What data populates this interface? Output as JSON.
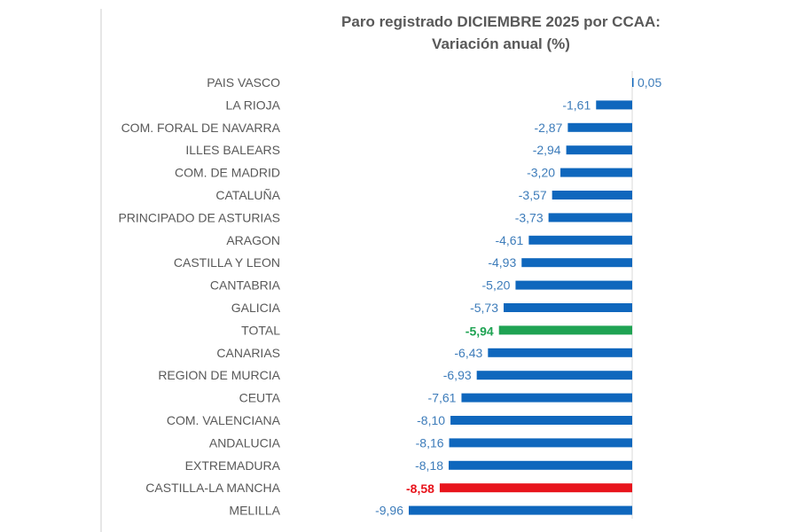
{
  "chart_data": {
    "type": "bar",
    "orientation": "horizontal",
    "title": "Paro registrado DICIEMBRE 2025 por CCAA:",
    "subtitle": "Variación anual (%)",
    "xlabel": "",
    "ylabel": "",
    "xlim": [
      -10,
      0.3
    ],
    "grid": false,
    "legend": "none",
    "categories": [
      "PAIS VASCO",
      "LA RIOJA",
      "COM. FORAL DE NAVARRA",
      "ILLES BALEARS",
      "COM. DE MADRID",
      "CATALUÑA",
      "PRINCIPADO DE ASTURIAS",
      "ARAGON",
      "CASTILLA Y LEON",
      "CANTABRIA",
      "GALICIA",
      "TOTAL",
      "CANARIAS",
      "REGION DE MURCIA",
      "CEUTA",
      "COM. VALENCIANA",
      "ANDALUCIA",
      "EXTREMADURA",
      "CASTILLA-LA MANCHA",
      "MELILLA"
    ],
    "values": [
      0.05,
      -1.61,
      -2.87,
      -2.94,
      -3.2,
      -3.57,
      -3.73,
      -4.61,
      -4.93,
      -5.2,
      -5.73,
      -5.94,
      -6.43,
      -6.93,
      -7.61,
      -8.1,
      -8.16,
      -8.18,
      -8.58,
      -9.96
    ],
    "labels": [
      "0,05",
      "-1,61",
      "-2,87",
      "-2,94",
      "-3,20",
      "-3,57",
      "-3,73",
      "-4,61",
      "-4,93",
      "-5,20",
      "-5,73",
      "-5,94",
      "-6,43",
      "-6,93",
      "-7,61",
      "-8,10",
      "-8,16",
      "-8,18",
      "-8,58",
      "-9,96"
    ],
    "highlights": {
      "TOTAL": {
        "color": "#1fa353",
        "bold": true
      },
      "CASTILLA-LA MANCHA": {
        "color": "#e8141c",
        "bold": true
      }
    },
    "colors": {
      "bar": "#0f67bd",
      "value_label": "#3d7cba",
      "category_label": "#595959",
      "axis": "#d9d9d9"
    }
  }
}
